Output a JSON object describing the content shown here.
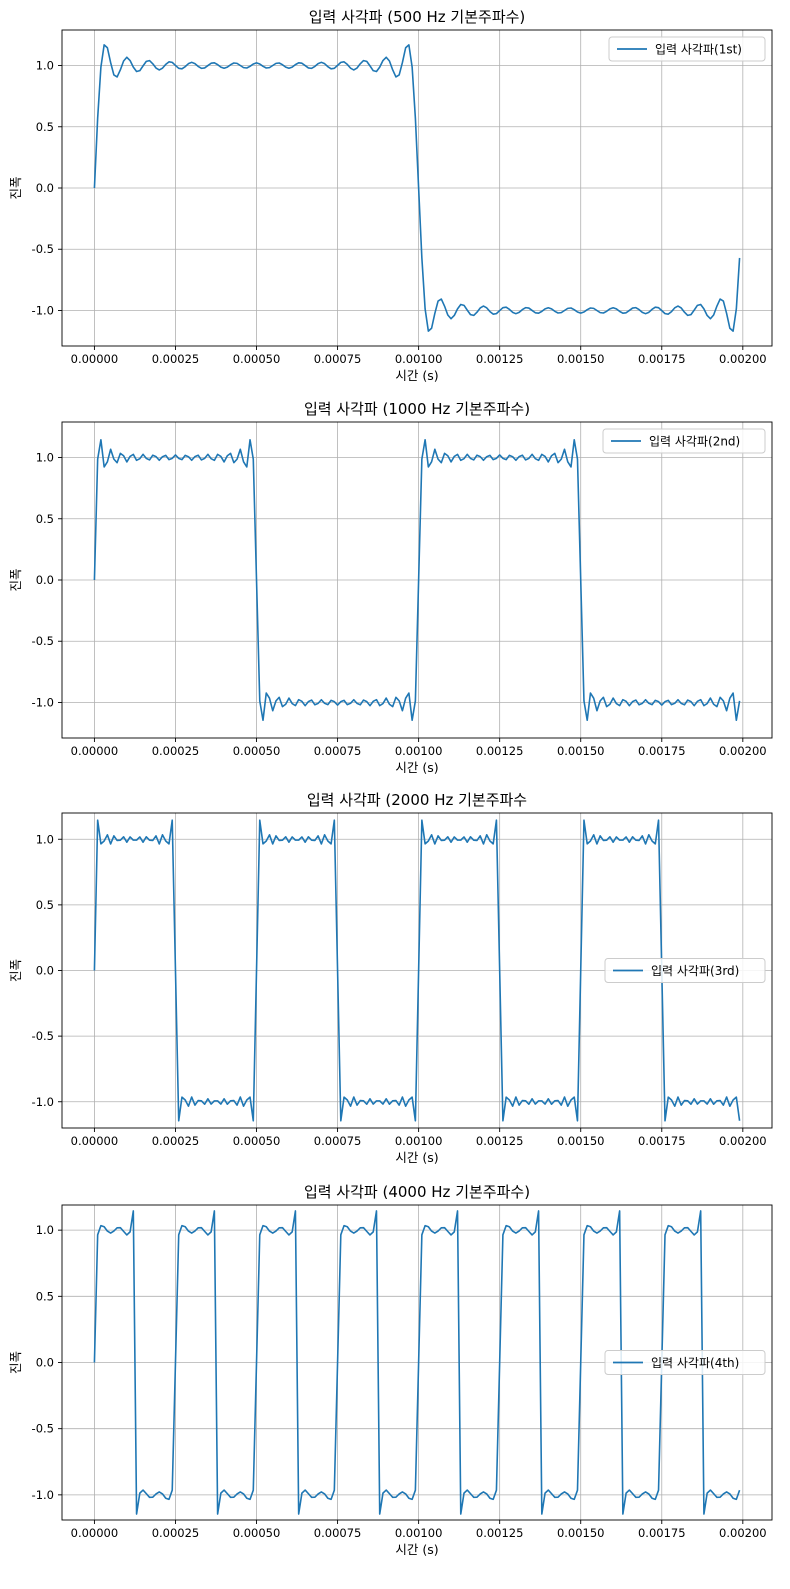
{
  "chart_data": [
    {
      "type": "line",
      "title": "입력 사각파 (500 Hz 기본주파수)",
      "xlabel": "시간 (s)",
      "ylabel": "진폭",
      "xlim": [
        -0.0001,
        0.00209
      ],
      "ylim": [
        -1.29,
        1.29
      ],
      "xticks": [
        "0.00000",
        "0.00025",
        "0.00050",
        "0.00075",
        "0.00100",
        "0.00125",
        "0.00150",
        "0.00175",
        "0.00200"
      ],
      "xtick_values": [
        0,
        0.00025,
        0.0005,
        0.00075,
        0.001,
        0.00125,
        0.0015,
        0.00175,
        0.002
      ],
      "yticks": [
        "-1.0",
        "-0.5",
        "0.0",
        "0.5",
        "1.0"
      ],
      "ytick_values": [
        -1.0,
        -0.5,
        0.0,
        0.5,
        1.0
      ],
      "grid": true,
      "legend_placement": "top-right",
      "color": "#1f77b4",
      "series": [
        {
          "name": "입력 사각파(1st)",
          "frequency_hz": 500,
          "harmonics": 15,
          "sample_step_s": 1e-05,
          "sample_count": 200,
          "x_start": 0,
          "x_end": 0.00199
        }
      ]
    },
    {
      "type": "line",
      "title": "입력 사각파 (1000 Hz 기본주파수)",
      "xlabel": "시간 (s)",
      "ylabel": "진폭",
      "xlim": [
        -0.0001,
        0.00209
      ],
      "ylim": [
        -1.29,
        1.29
      ],
      "xticks": [
        "0.00000",
        "0.00025",
        "0.00050",
        "0.00075",
        "0.00100",
        "0.00125",
        "0.00150",
        "0.00175",
        "0.00200"
      ],
      "xtick_values": [
        0,
        0.00025,
        0.0005,
        0.00075,
        0.001,
        0.00125,
        0.0015,
        0.00175,
        0.002
      ],
      "yticks": [
        "-1.0",
        "-0.5",
        "0.0",
        "0.5",
        "1.0"
      ],
      "ytick_values": [
        -1.0,
        -0.5,
        0.0,
        0.5,
        1.0
      ],
      "grid": true,
      "legend_placement": "top-right",
      "color": "#1f77b4",
      "series": [
        {
          "name": "입력 사각파(2nd)",
          "frequency_hz": 1000,
          "harmonics": 15,
          "sample_step_s": 1e-05,
          "sample_count": 200,
          "x_start": 0,
          "x_end": 0.00199
        }
      ]
    },
    {
      "type": "line",
      "title": "입력 사각파 (2000 Hz 기본주파수",
      "xlabel": "시간 (s)",
      "ylabel": "진폭",
      "xlim": [
        -0.0001,
        0.00209
      ],
      "ylim": [
        -1.2,
        1.2
      ],
      "xticks": [
        "0.00000",
        "0.00025",
        "0.00050",
        "0.00075",
        "0.00100",
        "0.00125",
        "0.00150",
        "0.00175",
        "0.00200"
      ],
      "xtick_values": [
        0,
        0.00025,
        0.0005,
        0.00075,
        0.001,
        0.00125,
        0.0015,
        0.00175,
        0.002
      ],
      "yticks": [
        "-1.0",
        "-0.5",
        "0.0",
        "0.5",
        "1.0"
      ],
      "ytick_values": [
        -1.0,
        -0.5,
        0.0,
        0.5,
        1.0
      ],
      "grid": true,
      "legend_placement": "center-right",
      "color": "#1f77b4",
      "series": [
        {
          "name": "입력 사각파(3rd)",
          "frequency_hz": 2000,
          "harmonics": 15,
          "sample_step_s": 1e-05,
          "sample_count": 200,
          "x_start": 0,
          "x_end": 0.00199
        }
      ]
    },
    {
      "type": "line",
      "title": "입력 사각파 (4000 Hz 기본주파수)",
      "xlabel": "시간 (s)",
      "ylabel": "진폭",
      "xlim": [
        -0.0001,
        0.00209
      ],
      "ylim": [
        -1.19,
        1.19
      ],
      "xticks": [
        "0.00000",
        "0.00025",
        "0.00050",
        "0.00075",
        "0.00100",
        "0.00125",
        "0.00150",
        "0.00175",
        "0.00200"
      ],
      "xtick_values": [
        0,
        0.00025,
        0.0005,
        0.00075,
        0.001,
        0.00125,
        0.0015,
        0.00175,
        0.002
      ],
      "yticks": [
        "-1.0",
        "-0.5",
        "0.0",
        "0.5",
        "1.0"
      ],
      "ytick_values": [
        -1.0,
        -0.5,
        0.0,
        0.5,
        1.0
      ],
      "grid": true,
      "legend_placement": "center-right",
      "color": "#1f77b4",
      "series": [
        {
          "name": "입력 사각파(4th)",
          "frequency_hz": 4000,
          "harmonics": 15,
          "sample_step_s": 1e-05,
          "sample_count": 200,
          "x_start": 0,
          "x_end": 0.00199
        }
      ]
    }
  ]
}
